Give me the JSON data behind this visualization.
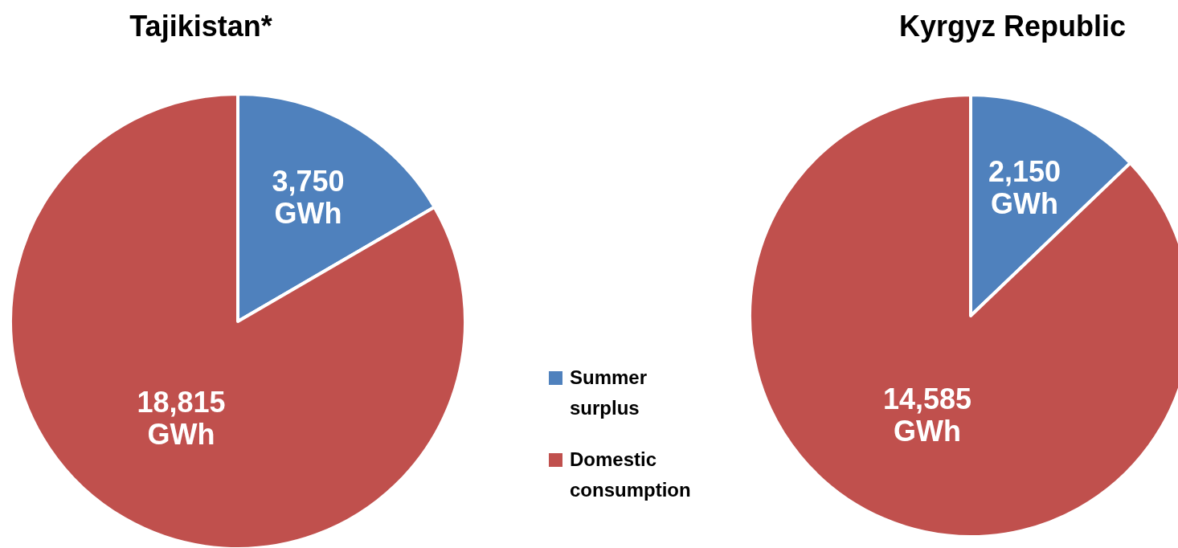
{
  "chart_data": [
    {
      "type": "pie",
      "title": "Tajikistan*",
      "categories": [
        "Summer surplus",
        "Domestic consumption"
      ],
      "values": [
        3750,
        18815
      ],
      "colors": [
        "#4f81bd",
        "#c0504d"
      ],
      "value_labels": [
        "3,750 GWh",
        "18,815 GWh"
      ],
      "legend": "right"
    },
    {
      "type": "pie",
      "title": "Kyrgyz Republic",
      "categories": [
        null,
        null
      ],
      "values": [
        2150,
        14585
      ],
      "colors": [
        "#4f81bd",
        "#c0504d"
      ],
      "value_labels": [
        "2,150 GWh",
        "14,585 GWh"
      ]
    }
  ]
}
